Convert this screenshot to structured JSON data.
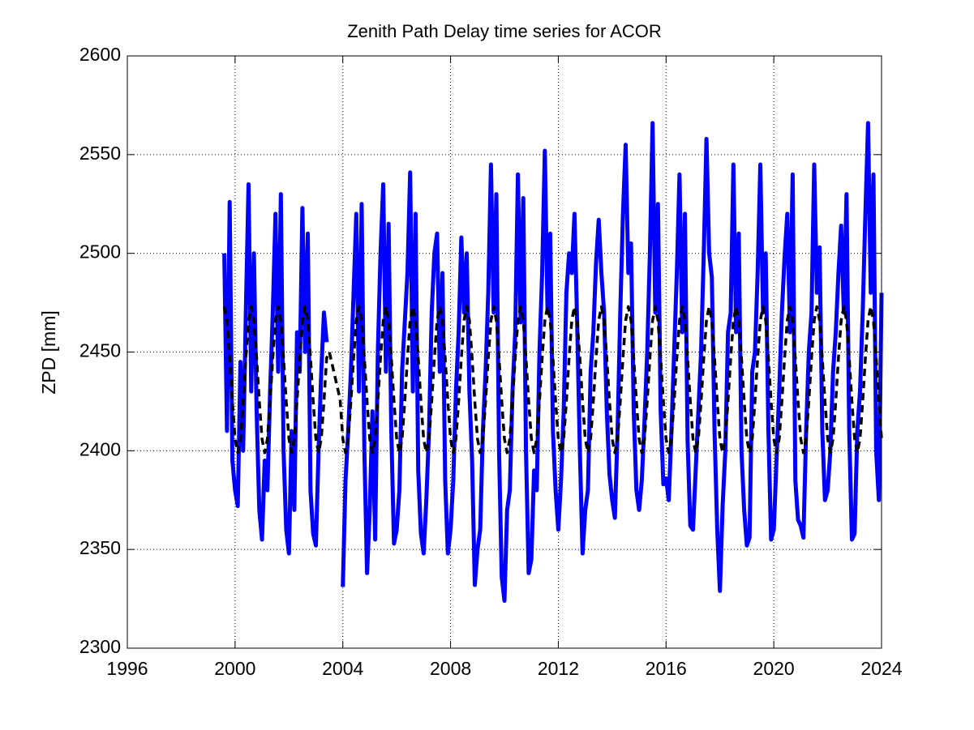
{
  "chart_data": {
    "type": "line",
    "title": "Zenith Path Delay time series for ACOR",
    "y_label": "ZPD [mm]",
    "xlim": [
      1996,
      2024
    ],
    "xticks": [
      1996,
      2000,
      2004,
      2008,
      2012,
      2016,
      2020,
      2024
    ],
    "ylim": [
      2300,
      2600
    ],
    "yticks": [
      2300,
      2350,
      2400,
      2450,
      2500,
      2550,
      2600
    ],
    "grid": true,
    "x": [
      1999.6,
      1999.7,
      1999.8,
      1999.9,
      2000.0,
      2000.1,
      2000.2,
      2000.3,
      2000.4,
      2000.5,
      2000.6,
      2000.7,
      2000.8,
      2000.9,
      2001.0,
      2001.1,
      2001.2,
      2001.3,
      2001.4,
      2001.5,
      2001.6,
      2001.7,
      2001.8,
      2001.9,
      2002.0,
      2002.1,
      2002.2,
      2002.3,
      2002.4,
      2002.5,
      2002.6,
      2002.7,
      2002.8,
      2002.9,
      2003.0,
      2003.1,
      2003.2,
      2003.3,
      2003.4,
      2003.5,
      2003.6,
      2003.7,
      2003.8,
      2003.9,
      2004.0,
      2004.1,
      2004.2,
      2004.3,
      2004.4,
      2004.5,
      2004.6,
      2004.7,
      2004.8,
      2004.9,
      2005.0,
      2005.1,
      2005.2,
      2005.3,
      2005.4,
      2005.5,
      2005.6,
      2005.7,
      2005.8,
      2005.9,
      2006.0,
      2006.1,
      2006.2,
      2006.3,
      2006.4,
      2006.5,
      2006.6,
      2006.7,
      2006.8,
      2006.9,
      2007.0,
      2007.1,
      2007.2,
      2007.3,
      2007.4,
      2007.5,
      2007.6,
      2007.7,
      2007.8,
      2007.9,
      2008.0,
      2008.1,
      2008.2,
      2008.3,
      2008.4,
      2008.5,
      2008.6,
      2008.7,
      2008.8,
      2008.9,
      2009.0,
      2009.1,
      2009.2,
      2009.3,
      2009.4,
      2009.5,
      2009.6,
      2009.7,
      2009.8,
      2009.9,
      2010.0,
      2010.1,
      2010.2,
      2010.3,
      2010.4,
      2010.5,
      2010.6,
      2010.7,
      2010.8,
      2010.9,
      2011.0,
      2011.1,
      2011.2,
      2011.3,
      2011.4,
      2011.5,
      2011.6,
      2011.7,
      2011.8,
      2011.9,
      2012.0,
      2012.1,
      2012.2,
      2012.3,
      2012.4,
      2012.5,
      2012.6,
      2012.7,
      2012.8,
      2012.9,
      2013.0,
      2013.1,
      2013.2,
      2013.3,
      2013.4,
      2013.5,
      2013.6,
      2013.7,
      2013.8,
      2013.9,
      2014.0,
      2014.1,
      2014.2,
      2014.3,
      2014.4,
      2014.5,
      2014.6,
      2014.7,
      2014.8,
      2014.9,
      2015.0,
      2015.1,
      2015.2,
      2015.3,
      2015.4,
      2015.5,
      2015.6,
      2015.7,
      2015.8,
      2015.9,
      2016.0,
      2016.1,
      2016.2,
      2016.3,
      2016.4,
      2016.5,
      2016.6,
      2016.7,
      2016.8,
      2016.9,
      2017.0,
      2017.1,
      2017.2,
      2017.3,
      2017.4,
      2017.5,
      2017.6,
      2017.7,
      2017.8,
      2017.9,
      2018.0,
      2018.1,
      2018.2,
      2018.3,
      2018.4,
      2018.5,
      2018.6,
      2018.7,
      2018.8,
      2018.9,
      2019.0,
      2019.1,
      2019.2,
      2019.3,
      2019.4,
      2019.5,
      2019.6,
      2019.7,
      2019.8,
      2019.9,
      2020.0,
      2020.1,
      2020.2,
      2020.3,
      2020.4,
      2020.5,
      2020.6,
      2020.7,
      2020.8,
      2020.9,
      2021.0,
      2021.1,
      2021.2,
      2021.3,
      2021.4,
      2021.5,
      2021.6,
      2021.7,
      2021.8,
      2021.9,
      2022.0,
      2022.1,
      2022.2,
      2022.3,
      2022.4,
      2022.5,
      2022.6,
      2022.7,
      2022.8,
      2022.9,
      2023.0,
      2023.1,
      2023.2,
      2023.3,
      2023.4,
      2023.5,
      2023.6,
      2023.7,
      2023.8,
      2023.9,
      2024.0
    ],
    "series": [
      {
        "color": "#0000ff",
        "width": 5,
        "dash": "solid",
        "values": [
          2500,
          2410,
          2526,
          2395,
          2380,
          2372,
          2445,
          2400,
          2470,
          2535,
          2430,
          2500,
          2420,
          2370,
          2355,
          2395,
          2380,
          2430,
          2470,
          2520,
          2440,
          2530,
          2400,
          2360,
          2348,
          2410,
          2370,
          2460,
          2440,
          2523,
          2450,
          2510,
          2380,
          2358,
          2352,
          2400,
          2440,
          2470,
          2455,
          null,
          null,
          null,
          null,
          null,
          2331,
          2385,
          2410,
          2440,
          2480,
          2520,
          2430,
          2525,
          2400,
          2338,
          2370,
          2420,
          2355,
          2450,
          2500,
          2535,
          2440,
          2515,
          2410,
          2353,
          2360,
          2380,
          2440,
          2465,
          2490,
          2541,
          2430,
          2520,
          2390,
          2358,
          2348,
          2375,
          2410,
          2470,
          2500,
          2510,
          2440,
          2490,
          2385,
          2348,
          2360,
          2385,
          2430,
          2460,
          2508,
          2470,
          2500,
          2430,
          2395,
          2332,
          2350,
          2360,
          2410,
          2440,
          2480,
          2545,
          2470,
          2530,
          2400,
          2336,
          2324,
          2370,
          2380,
          2430,
          2460,
          2540,
          2465,
          2528,
          2400,
          2338,
          2345,
          2390,
          2380,
          2450,
          2490,
          2552,
          2470,
          2510,
          2410,
          2380,
          2360,
          2385,
          2420,
          2480,
          2500,
          2490,
          2520,
          2465,
          2400,
          2348,
          2370,
          2380,
          2440,
          2460,
          2495,
          2517,
          2490,
          2470,
          2420,
          2388,
          2375,
          2366,
          2410,
          2470,
          2520,
          2555,
          2490,
          2505,
          2420,
          2380,
          2370,
          2385,
          2415,
          2450,
          2500,
          2566,
          2470,
          2525,
          2420,
          2383,
          2386,
          2375,
          2410,
          2450,
          2490,
          2540,
          2460,
          2520,
          2405,
          2362,
          2360,
          2390,
          2420,
          2450,
          2500,
          2558,
          2500,
          2488,
          2410,
          2360,
          2329,
          2372,
          2400,
          2460,
          2470,
          2545,
          2460,
          2510,
          2400,
          2370,
          2352,
          2356,
          2440,
          2450,
          2490,
          2545,
          2470,
          2500,
          2410,
          2355,
          2360,
          2395,
          2430,
          2470,
          2498,
          2520,
          2460,
          2540,
          2385,
          2365,
          2362,
          2356,
          2410,
          2450,
          2470,
          2545,
          2480,
          2503,
          2410,
          2375,
          2380,
          2400,
          2440,
          2460,
          2490,
          2514,
          2470,
          2530,
          2410,
          2355,
          2358,
          2410,
          2430,
          2470,
          2520,
          2566,
          2480,
          2540,
          2400,
          2375,
          2480
        ]
      },
      {
        "color": "#000000",
        "width": 3.5,
        "dash": "dashed",
        "values": [
          2473,
          2466,
          2447,
          2425,
          2406,
          2399,
          2406,
          2425,
          2447,
          2466,
          2473,
          2466,
          2447,
          2425,
          2406,
          2399,
          2406,
          2425,
          2447,
          2466,
          2473,
          2466,
          2447,
          2425,
          2406,
          2399,
          2406,
          2425,
          2447,
          2466,
          2473,
          2466,
          2447,
          2425,
          2406,
          2399,
          2406,
          2425,
          2447,
          2450,
          2444,
          2438,
          2432,
          2426,
          2406,
          2399,
          2406,
          2425,
          2447,
          2466,
          2473,
          2466,
          2447,
          2425,
          2406,
          2399,
          2406,
          2425,
          2447,
          2466,
          2473,
          2466,
          2447,
          2425,
          2406,
          2399,
          2406,
          2425,
          2447,
          2466,
          2473,
          2466,
          2447,
          2425,
          2406,
          2399,
          2406,
          2425,
          2447,
          2466,
          2473,
          2466,
          2447,
          2425,
          2406,
          2399,
          2406,
          2425,
          2447,
          2466,
          2473,
          2466,
          2447,
          2425,
          2406,
          2399,
          2406,
          2425,
          2447,
          2466,
          2473,
          2466,
          2447,
          2425,
          2406,
          2399,
          2406,
          2425,
          2447,
          2466,
          2473,
          2466,
          2447,
          2425,
          2406,
          2399,
          2406,
          2425,
          2447,
          2466,
          2473,
          2466,
          2447,
          2425,
          2406,
          2399,
          2406,
          2425,
          2447,
          2466,
          2473,
          2466,
          2447,
          2425,
          2406,
          2399,
          2406,
          2425,
          2447,
          2466,
          2473,
          2466,
          2447,
          2425,
          2406,
          2399,
          2406,
          2425,
          2447,
          2466,
          2473,
          2466,
          2447,
          2425,
          2406,
          2399,
          2406,
          2425,
          2447,
          2466,
          2473,
          2466,
          2447,
          2425,
          2406,
          2399,
          2406,
          2425,
          2447,
          2466,
          2473,
          2466,
          2447,
          2425,
          2406,
          2399,
          2406,
          2425,
          2447,
          2466,
          2473,
          2466,
          2447,
          2425,
          2406,
          2399,
          2406,
          2425,
          2447,
          2466,
          2473,
          2466,
          2447,
          2425,
          2406,
          2399,
          2406,
          2425,
          2447,
          2466,
          2473,
          2466,
          2447,
          2425,
          2406,
          2399,
          2406,
          2425,
          2447,
          2466,
          2473,
          2466,
          2447,
          2425,
          2406,
          2399,
          2406,
          2425,
          2447,
          2466,
          2473,
          2466,
          2447,
          2425,
          2406,
          2399,
          2406,
          2425,
          2447,
          2466,
          2473,
          2466,
          2447,
          2425,
          2406,
          2399,
          2406,
          2425,
          2447,
          2466,
          2473,
          2466,
          2447,
          2425,
          2406
        ]
      }
    ]
  }
}
